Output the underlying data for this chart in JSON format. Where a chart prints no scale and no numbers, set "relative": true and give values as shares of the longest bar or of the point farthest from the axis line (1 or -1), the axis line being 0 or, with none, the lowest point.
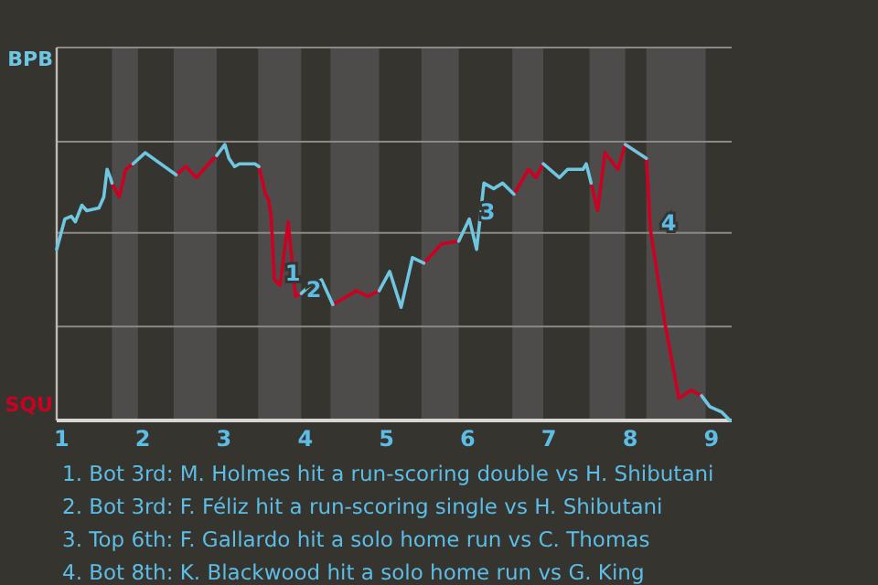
{
  "chart_data": {
    "type": "line",
    "relative": true,
    "x": [
      0.94,
      1.04,
      1.12,
      1.17,
      1.25,
      1.31,
      1.46,
      1.52,
      1.56,
      1.6,
      1.62,
      1.71,
      1.79,
      1.88,
      2.03,
      2.41,
      2.53,
      2.66,
      2.81,
      2.91,
      3.01,
      3.06,
      3.13,
      3.19,
      3.38,
      3.43,
      3.51,
      3.55,
      3.58,
      3.62,
      3.69,
      3.79,
      3.88,
      3.95,
      4.06,
      4.2,
      4.34,
      4.63,
      4.77,
      4.91,
      5.04,
      5.18,
      5.32,
      5.46,
      5.68,
      5.89,
      6.02,
      6.11,
      6.2,
      6.32,
      6.43,
      6.57,
      6.75,
      6.84,
      6.93,
      7.13,
      7.23,
      7.42,
      7.46,
      7.52,
      7.6,
      7.69,
      7.85,
      7.94,
      8.2,
      8.25,
      8.43,
      8.6,
      8.75,
      8.88,
      8.98,
      9.13,
      9.23
    ],
    "series": [
      {
        "color": "#6ec6e0",
        "values": [
          0.62,
          0.73,
          0.74,
          0.72,
          0.78,
          0.76,
          0.77,
          0.81,
          0.91,
          0.88,
          0.86,
          null,
          null,
          0.93,
          0.97,
          0.89,
          null,
          null,
          null,
          0.96,
          1,
          0.95,
          0.92,
          0.93,
          0.93,
          0.92,
          null,
          null,
          null,
          null,
          null,
          null,
          null,
          0.46,
          0.49,
          0.51,
          0.42,
          null,
          null,
          0.47,
          0.54,
          0.41,
          0.59,
          0.57,
          null,
          0.65,
          0.73,
          0.62,
          0.86,
          0.84,
          0.86,
          0.82,
          null,
          null,
          0.93,
          0.88,
          0.91,
          0.91,
          0.93,
          0.86,
          null,
          null,
          null,
          1,
          0.95,
          null,
          null,
          null,
          null,
          0.09,
          0.05,
          0.03,
          0
        ]
      },
      {
        "color": "#cc0022",
        "values": [
          null,
          null,
          null,
          null,
          null,
          null,
          null,
          null,
          null,
          null,
          0.86,
          0.81,
          0.91,
          0.93,
          null,
          0.89,
          0.92,
          0.88,
          0.93,
          0.96,
          null,
          null,
          null,
          null,
          null,
          0.92,
          0.82,
          0.8,
          0.74,
          0.51,
          0.49,
          0.72,
          0.45,
          0.46,
          null,
          null,
          0.42,
          0.47,
          0.45,
          0.47,
          null,
          null,
          null,
          0.57,
          0.64,
          0.65,
          null,
          null,
          null,
          null,
          null,
          0.82,
          0.91,
          0.88,
          0.93,
          null,
          null,
          null,
          null,
          0.86,
          0.76,
          0.97,
          0.91,
          1,
          0.95,
          0.69,
          0.35,
          0.08,
          0.11,
          0.09,
          null,
          null,
          null
        ]
      }
    ],
    "xlim": [
      0.94,
      9.25
    ],
    "xticks": [
      1,
      2,
      3,
      4,
      5,
      6,
      7,
      8,
      9
    ],
    "ref_lines": [
      {
        "axis": "y",
        "value": 1.01,
        "color": "#8c8a87"
      },
      {
        "axis": "y",
        "value": 0.68,
        "color": "#8c8a87"
      },
      {
        "axis": "y",
        "value": 0.34,
        "color": "#8c8a87"
      }
    ],
    "marker": "none",
    "line_style": "solid",
    "bands": [
      {
        "axis": "x",
        "from": 1.62,
        "to": 1.94,
        "color": "#4e4c4a"
      },
      {
        "axis": "x",
        "from": 2.38,
        "to": 2.91,
        "color": "#4e4c4a"
      },
      {
        "axis": "x",
        "from": 3.42,
        "to": 3.95,
        "color": "#4e4c4a"
      },
      {
        "axis": "x",
        "from": 4.31,
        "to": 4.91,
        "color": "#4e4c4a"
      },
      {
        "axis": "x",
        "from": 5.43,
        "to": 5.89,
        "color": "#4e4c4a"
      },
      {
        "axis": "x",
        "from": 6.55,
        "to": 6.93,
        "color": "#4e4c4a"
      },
      {
        "axis": "x",
        "from": 7.5,
        "to": 7.94,
        "color": "#4e4c4a"
      },
      {
        "axis": "x",
        "from": 8.2,
        "to": 8.93,
        "color": "#4e4c4a"
      }
    ],
    "annotations": [
      "BPB",
      "SQU",
      {
        "text": "1",
        "x": 3.62,
        "y": 0.51
      },
      {
        "text": "2",
        "x": 3.88,
        "y": 0.45
      },
      {
        "text": "3",
        "x": 6.02,
        "y": 0.73
      },
      {
        "text": "4",
        "x": 8.25,
        "y": 0.69
      },
      "1. Bot 3rd: M. Holmes hit a run-scoring double vs H. Shibutani",
      "2. Bot 3rd: F. Féliz hit a run-scoring single vs H. Shibutani",
      "3. Top 6th: F. Gallardo hit a solo home run vs C. Thomas",
      "4. Bot 8th: K. Blackwood hit a solo home run vs G. King"
    ]
  }
}
